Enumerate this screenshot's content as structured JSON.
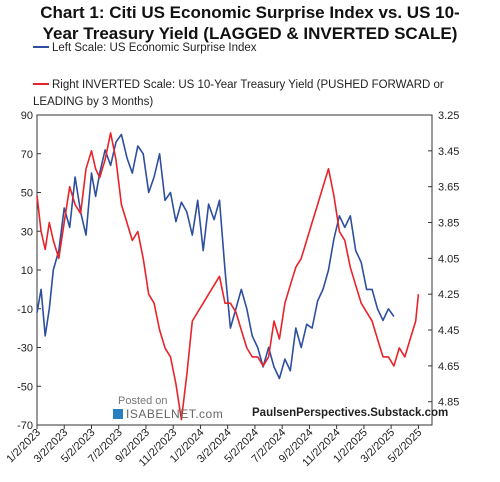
{
  "title_line1": "Chart 1: Citi US Economic Surprise Index vs. US 10-",
  "title_line2": "Year Treasury Yield (LAGGED & INVERTED SCALE)",
  "colors": {
    "blue": "#2e4f9e",
    "red": "#e8232a"
  },
  "chart_data": {
    "type": "line",
    "x_tick_labels": [
      "1/2/2023",
      "3/2/2023",
      "5/2/2023",
      "7/2/2023",
      "9/2/2023",
      "11/2/2023",
      "1/2/2024",
      "3/2/2024",
      "5/2/2024",
      "7/2/2024",
      "9/2/2024",
      "11/2/2024",
      "1/2/2025",
      "3/2/2025",
      "5/2/2025"
    ],
    "left_axis": {
      "ticks": [
        "90",
        "70",
        "50",
        "30",
        "10",
        "-10",
        "-30",
        "-50",
        "-70"
      ],
      "ylim": [
        -70,
        90
      ]
    },
    "right_axis": {
      "ticks": [
        "3.25",
        "3.45",
        "3.65",
        "3.85",
        "4.05",
        "4.25",
        "4.45",
        "4.65",
        "4.85"
      ],
      "ylim": [
        3.25,
        4.98
      ],
      "inverted": true
    },
    "grid": false,
    "series": [
      {
        "name": "Left Scale: US Economic Surprise Index",
        "axis": "left",
        "color": "#2e4f9e",
        "x_month": [
          0,
          0.3,
          0.6,
          0.9,
          1.2,
          1.6,
          2.0,
          2.4,
          2.8,
          3.2,
          3.6,
          4.0,
          4.3,
          4.6,
          5.0,
          5.4,
          5.8,
          6.2,
          6.6,
          7.0,
          7.4,
          7.8,
          8.2,
          8.6,
          9.0,
          9.4,
          9.8,
          10.2,
          10.6,
          11.0,
          11.4,
          11.8,
          12.2,
          12.6,
          13.0,
          13.4,
          13.8,
          14.2,
          14.6,
          15.0,
          15.4,
          15.8,
          16.2,
          16.6,
          17.0,
          17.4,
          17.8,
          18.2,
          18.6,
          19.0,
          19.4,
          19.8,
          20.2,
          20.6,
          21.0,
          21.4,
          21.8,
          22.2,
          22.6,
          23.0,
          23.4,
          23.8,
          24.2,
          24.6,
          25.0,
          25.4,
          25.8,
          26.2
        ],
        "values": [
          -12,
          0,
          -24,
          -10,
          10,
          20,
          42,
          32,
          58,
          40,
          28,
          60,
          48,
          60,
          72,
          64,
          76,
          80,
          68,
          60,
          74,
          70,
          50,
          58,
          70,
          46,
          50,
          35,
          45,
          40,
          28,
          46,
          20,
          44,
          36,
          46,
          10,
          -20,
          -10,
          0,
          -10,
          -24,
          -30,
          -40,
          -30,
          -40,
          -46,
          -36,
          -42,
          -20,
          -30,
          -18,
          -20,
          -6,
          0,
          10,
          26,
          38,
          32,
          38,
          20,
          14,
          0,
          0,
          -10,
          -16,
          -10,
          -14
        ]
      },
      {
        "name": "Right INVERTED Scale: US 10-Year Treasury Yield (PUSHED FORWARD or LEADING by 3 Months)",
        "axis": "right",
        "color": "#e8232a",
        "x_month": [
          0,
          0.3,
          0.6,
          0.9,
          1.2,
          1.6,
          2.0,
          2.4,
          2.8,
          3.2,
          3.6,
          4.0,
          4.3,
          4.6,
          5.0,
          5.4,
          5.8,
          6.2,
          6.6,
          7.0,
          7.4,
          7.8,
          8.2,
          8.6,
          9.0,
          9.4,
          9.8,
          10.2,
          10.6,
          11.0,
          11.4,
          11.8,
          12.2,
          12.6,
          13.0,
          13.4,
          13.8,
          14.2,
          14.6,
          15.0,
          15.4,
          15.8,
          16.2,
          16.6,
          17.0,
          17.4,
          17.8,
          18.2,
          18.6,
          19.0,
          19.4,
          19.8,
          20.2,
          20.6,
          21.0,
          21.4,
          21.8,
          22.2,
          22.6,
          23.0,
          23.4,
          23.8,
          24.2,
          24.6,
          25.0,
          25.4,
          25.8,
          26.2,
          26.6,
          27.0,
          27.4,
          27.8,
          28.0
        ],
        "values": [
          3.7,
          3.9,
          4.0,
          3.85,
          3.95,
          4.05,
          3.85,
          3.65,
          3.75,
          3.8,
          3.55,
          3.45,
          3.55,
          3.6,
          3.5,
          3.35,
          3.5,
          3.75,
          3.85,
          3.95,
          3.9,
          4.05,
          4.25,
          4.3,
          4.45,
          4.55,
          4.6,
          4.75,
          4.95,
          4.7,
          4.4,
          4.35,
          4.3,
          4.25,
          4.2,
          4.15,
          4.3,
          4.3,
          4.35,
          4.45,
          4.55,
          4.6,
          4.6,
          4.65,
          4.6,
          4.4,
          4.5,
          4.3,
          4.2,
          4.1,
          4.05,
          3.95,
          3.85,
          3.75,
          3.65,
          3.55,
          3.7,
          3.9,
          3.95,
          4.1,
          4.2,
          4.3,
          4.35,
          4.4,
          4.5,
          4.6,
          4.6,
          4.65,
          4.55,
          4.6,
          4.5,
          4.4,
          4.25
        ]
      }
    ]
  },
  "watermark": {
    "posted_on": "Posted on",
    "site": "ISABELNET.com"
  },
  "credit": "PaulsenPerspectives.Substack.com"
}
